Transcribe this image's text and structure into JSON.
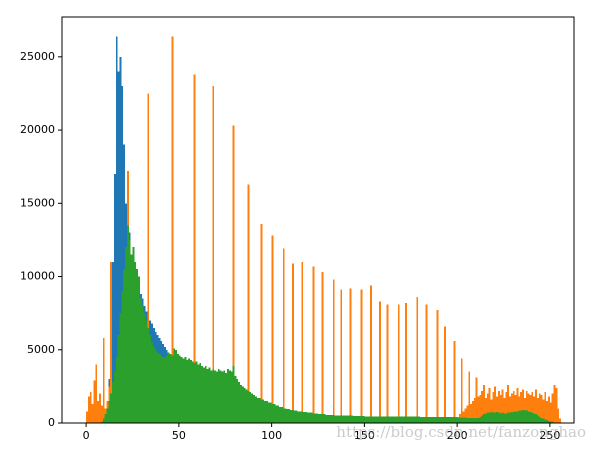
{
  "chart_data": {
    "type": "histogram",
    "annotation": "https://blog.csdn.net/fanzonghao",
    "xlim": [
      -13,
      263
    ],
    "ylim": [
      0,
      27720
    ],
    "xticks": [
      0,
      50,
      100,
      150,
      200,
      250
    ],
    "yticks": [
      0,
      5000,
      10000,
      15000,
      20000,
      25000
    ],
    "grid": false,
    "bins": [
      0,
      1,
      2,
      3,
      4,
      5,
      6,
      7,
      8,
      9,
      10,
      11,
      12,
      13,
      14,
      15,
      16,
      17,
      18,
      19,
      20,
      21,
      22,
      23,
      24,
      25,
      26,
      27,
      28,
      29,
      30,
      31,
      32,
      33,
      34,
      35,
      36,
      37,
      38,
      39,
      40,
      41,
      42,
      43,
      44,
      45,
      46,
      47,
      48,
      49,
      50,
      51,
      52,
      53,
      54,
      55,
      56,
      57,
      58,
      59,
      60,
      61,
      62,
      63,
      64,
      65,
      66,
      67,
      68,
      69,
      70,
      71,
      72,
      73,
      74,
      75,
      76,
      77,
      78,
      79,
      80,
      81,
      82,
      83,
      84,
      85,
      86,
      87,
      88,
      89,
      90,
      91,
      92,
      93,
      94,
      95,
      96,
      97,
      98,
      99,
      100,
      101,
      102,
      103,
      104,
      105,
      106,
      107,
      108,
      109,
      110,
      111,
      112,
      113,
      114,
      115,
      116,
      117,
      118,
      119,
      120,
      121,
      122,
      123,
      124,
      125,
      126,
      127,
      128,
      129,
      130,
      131,
      132,
      133,
      134,
      135,
      136,
      137,
      138,
      139,
      140,
      141,
      142,
      143,
      144,
      145,
      146,
      147,
      148,
      149,
      150,
      151,
      152,
      153,
      154,
      155,
      156,
      157,
      158,
      159,
      160,
      161,
      162,
      163,
      164,
      165,
      166,
      167,
      168,
      169,
      170,
      171,
      172,
      173,
      174,
      175,
      176,
      177,
      178,
      179,
      180,
      181,
      182,
      183,
      184,
      185,
      186,
      187,
      188,
      189,
      190,
      191,
      192,
      193,
      194,
      195,
      196,
      197,
      198,
      199,
      200,
      201,
      202,
      203,
      204,
      205,
      206,
      207,
      208,
      209,
      210,
      211,
      212,
      213,
      214,
      215,
      216,
      217,
      218,
      219,
      220,
      221,
      222,
      223,
      224,
      225,
      226,
      227,
      228,
      229,
      230,
      231,
      232,
      233,
      234,
      235,
      236,
      237,
      238,
      239,
      240,
      241,
      242,
      243,
      244,
      245,
      246,
      247,
      248,
      249,
      250,
      251,
      252,
      253,
      254,
      255,
      256
    ],
    "series": [
      {
        "color": "#1f77b4",
        "values": [
          0,
          0,
          0,
          0,
          0,
          0,
          0,
          0,
          0,
          100,
          500,
          1500,
          3000,
          6000,
          11000,
          17000,
          26400,
          24000,
          25000,
          23000,
          19000,
          15000,
          12500,
          13000,
          11500,
          10500,
          10000,
          9500,
          9200,
          8800,
          8500,
          8000,
          7600,
          7200,
          7000,
          6800,
          6500,
          6200,
          6000,
          5800,
          5600,
          5400,
          5200,
          5000,
          4700,
          4500,
          4400,
          4300,
          4200,
          4100,
          3900,
          3800,
          3700,
          3600,
          3500,
          3400,
          3300,
          3200,
          3100,
          3000,
          3000,
          2900,
          2900,
          2800,
          2800,
          2700,
          2700,
          2600,
          2600,
          2500,
          2500,
          2400,
          2400,
          2300,
          2300,
          2200,
          2200,
          2100,
          2100,
          2000,
          1900,
          1800,
          1700,
          1600,
          1500,
          1400,
          1300,
          1200,
          1100,
          1000,
          950,
          900,
          850,
          800,
          780,
          760,
          740,
          720,
          700,
          680,
          660,
          640,
          620,
          600,
          590,
          580,
          570,
          560,
          550,
          540,
          530,
          520,
          510,
          500,
          490,
          480,
          470,
          460,
          450,
          440,
          430,
          420,
          410,
          400,
          400,
          390,
          390,
          380,
          380,
          370,
          370,
          360,
          360,
          350,
          350,
          340,
          340,
          330,
          330,
          320,
          320,
          310,
          310,
          300,
          300,
          300,
          290,
          290,
          280,
          280,
          280,
          270,
          270,
          260,
          260,
          250,
          250,
          240,
          240,
          230,
          230,
          220,
          220,
          210,
          210,
          200,
          200,
          190,
          190,
          180,
          180,
          170,
          170,
          160,
          160,
          150,
          150,
          140,
          140,
          130,
          130,
          120,
          120,
          110,
          110,
          100,
          100,
          100,
          90,
          90,
          90,
          80,
          80,
          80,
          70,
          70,
          70,
          60,
          60,
          60,
          50,
          50,
          50,
          40,
          40,
          40,
          30,
          30,
          30,
          30,
          20,
          20,
          20,
          20,
          20,
          20,
          10,
          10,
          10,
          10,
          10,
          10,
          10,
          10,
          10,
          10,
          10,
          10,
          10,
          10,
          10,
          10,
          10,
          10,
          10,
          10,
          10,
          10,
          10,
          10,
          10,
          10,
          10,
          10,
          10,
          10,
          10,
          10,
          10,
          10,
          10,
          0,
          0,
          0,
          0,
          0,
          0
        ]
      },
      {
        "color": "#ff7f0e",
        "values": [
          800,
          1800,
          2100,
          1300,
          2900,
          4000,
          1500,
          2000,
          1200,
          5800,
          1000,
          1500,
          2500,
          11000,
          2300,
          1000,
          800,
          700,
          600,
          500,
          500,
          500,
          17200,
          500,
          400,
          400,
          400,
          400,
          400,
          400,
          400,
          400,
          400,
          22500,
          400,
          400,
          400,
          400,
          400,
          400,
          400,
          400,
          400,
          400,
          400,
          400,
          26400,
          400,
          400,
          400,
          400,
          400,
          400,
          400,
          400,
          400,
          400,
          400,
          23800,
          400,
          400,
          400,
          400,
          400,
          400,
          400,
          400,
          400,
          23000,
          400,
          400,
          400,
          400,
          400,
          400,
          400,
          400,
          400,
          400,
          20300,
          300,
          300,
          300,
          300,
          300,
          300,
          300,
          16300,
          300,
          300,
          300,
          300,
          300,
          300,
          13600,
          300,
          300,
          300,
          300,
          300,
          12800,
          300,
          300,
          300,
          300,
          300,
          11900,
          300,
          300,
          300,
          300,
          10900,
          300,
          300,
          300,
          300,
          11000,
          300,
          300,
          300,
          300,
          300,
          10700,
          300,
          300,
          300,
          300,
          10300,
          300,
          300,
          300,
          300,
          300,
          9800,
          300,
          300,
          300,
          9100,
          300,
          300,
          300,
          300,
          9200,
          300,
          300,
          300,
          300,
          300,
          9100,
          300,
          300,
          300,
          300,
          9400,
          300,
          300,
          300,
          300,
          8300,
          300,
          300,
          300,
          8100,
          300,
          300,
          300,
          300,
          300,
          8100,
          300,
          300,
          300,
          8200,
          300,
          300,
          300,
          300,
          300,
          8600,
          300,
          300,
          300,
          300,
          8100,
          300,
          300,
          300,
          300,
          300,
          7700,
          300,
          300,
          300,
          6600,
          300,
          300,
          300,
          300,
          5600,
          300,
          400,
          600,
          4400,
          800,
          1000,
          1200,
          3500,
          1300,
          1500,
          1700,
          3100,
          1800,
          1900,
          2200,
          2600,
          1700,
          2000,
          2400,
          1600,
          2100,
          2500,
          1800,
          2200,
          1900,
          2300,
          1700,
          2100,
          2600,
          1800,
          2000,
          2200,
          1900,
          2400,
          1800,
          2100,
          2300,
          1700,
          2200,
          2000,
          1900,
          2100,
          1800,
          2300,
          1700,
          2000,
          1900,
          1600,
          2100,
          1500,
          1800,
          1400,
          2000,
          2600,
          2400,
          1000,
          300
        ]
      },
      {
        "color": "#2ca02c",
        "values": [
          0,
          0,
          0,
          0,
          0,
          0,
          0,
          0,
          100,
          300,
          600,
          1000,
          1500,
          2000,
          2800,
          3500,
          4500,
          6000,
          7500,
          9000,
          10500,
          12000,
          13500,
          12500,
          11500,
          12000,
          11000,
          10500,
          10000,
          8500,
          8000,
          7500,
          7000,
          6500,
          6000,
          5500,
          5200,
          5000,
          4800,
          4700,
          4600,
          4500,
          4500,
          4600,
          4800,
          4700,
          4600,
          5100,
          5000,
          4700,
          4600,
          4500,
          4400,
          4500,
          4300,
          4400,
          4300,
          4200,
          4100,
          4200,
          4000,
          4100,
          3900,
          3800,
          3900,
          3700,
          3800,
          3600,
          3700,
          3600,
          3500,
          3700,
          3600,
          3500,
          3600,
          3400,
          3700,
          3600,
          3500,
          3900,
          3200,
          3000,
          2800,
          2600,
          2500,
          2400,
          2300,
          2200,
          2100,
          2000,
          1900,
          1800,
          1700,
          1700,
          1600,
          1600,
          1500,
          1500,
          1400,
          1400,
          1300,
          1300,
          1200,
          1200,
          1100,
          1100,
          1000,
          1000,
          950,
          950,
          900,
          900,
          850,
          850,
          800,
          800,
          800,
          750,
          750,
          700,
          700,
          700,
          650,
          650,
          650,
          600,
          600,
          600,
          600,
          550,
          550,
          550,
          550,
          550,
          500,
          500,
          500,
          500,
          500,
          500,
          500,
          500,
          500,
          500,
          480,
          480,
          480,
          480,
          480,
          480,
          460,
          460,
          460,
          460,
          460,
          460,
          460,
          460,
          460,
          460,
          450,
          450,
          450,
          450,
          450,
          450,
          450,
          450,
          450,
          450,
          440,
          440,
          440,
          440,
          440,
          440,
          440,
          440,
          440,
          440,
          420,
          420,
          420,
          420,
          420,
          420,
          420,
          420,
          420,
          420,
          400,
          400,
          400,
          400,
          400,
          400,
          400,
          400,
          400,
          400,
          380,
          380,
          360,
          360,
          360,
          350,
          350,
          350,
          340,
          340,
          340,
          350,
          400,
          500,
          600,
          650,
          700,
          700,
          750,
          700,
          700,
          750,
          700,
          650,
          700,
          650,
          650,
          700,
          700,
          750,
          750,
          800,
          800,
          850,
          850,
          900,
          850,
          900,
          800,
          750,
          700,
          650,
          600,
          500,
          400,
          350,
          300,
          250,
          200,
          150,
          100,
          100,
          50,
          50,
          0,
          0
        ]
      }
    ]
  }
}
